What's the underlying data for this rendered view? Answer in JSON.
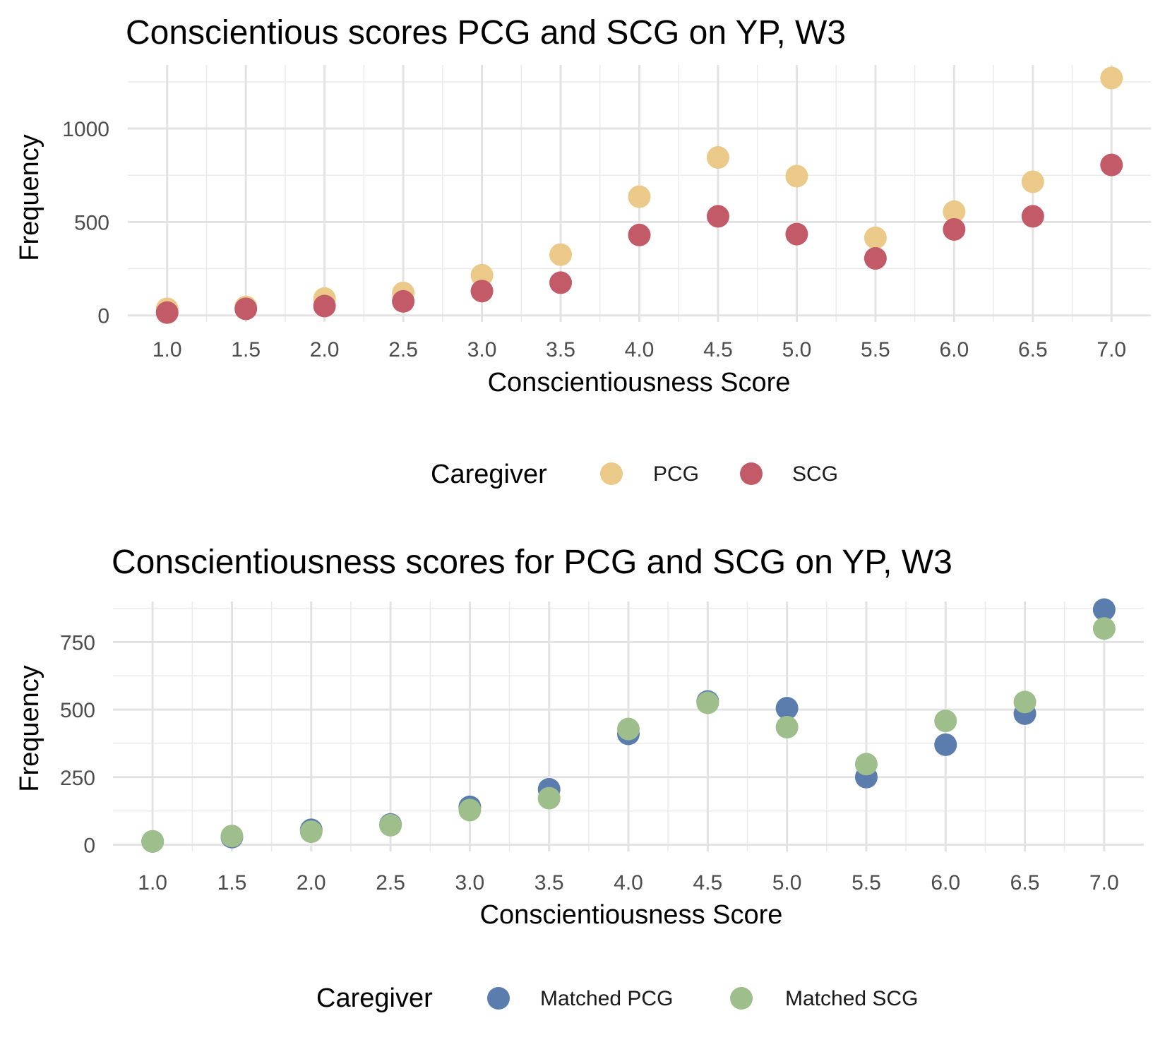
{
  "chart_data": [
    {
      "type": "scatter",
      "title": "Conscientious scores PCG and SCG on YP, W3",
      "xlabel": "Conscientiousness Score",
      "ylabel": "Frequency",
      "x": [
        1.0,
        1.5,
        2.0,
        2.5,
        3.0,
        3.5,
        4.0,
        4.5,
        5.0,
        5.5,
        6.0,
        6.5,
        7.0
      ],
      "x_tick_labels": [
        "1.0",
        "1.5",
        "2.0",
        "2.5",
        "3.0",
        "3.5",
        "4.0",
        "4.5",
        "5.0",
        "5.5",
        "6.0",
        "6.5",
        "7.0"
      ],
      "y_ticks": [
        0,
        500,
        1000
      ],
      "y_tick_labels": [
        "0",
        "500",
        "1000"
      ],
      "xlim": [
        0.75,
        7.25
      ],
      "ylim": [
        -35,
        1340
      ],
      "grid": true,
      "legend": {
        "title": "Caregiver",
        "position": "bottom"
      },
      "series": [
        {
          "name": "PCG",
          "color": "#EBC988",
          "values": [
            35,
            45,
            90,
            120,
            215,
            325,
            635,
            845,
            745,
            415,
            555,
            715,
            1270
          ]
        },
        {
          "name": "SCG",
          "color": "#C25B67",
          "values": [
            15,
            35,
            50,
            75,
            130,
            175,
            430,
            530,
            435,
            305,
            460,
            530,
            805
          ]
        }
      ]
    },
    {
      "type": "scatter",
      "title": "Conscientiousness scores for PCG and SCG on YP, W3",
      "xlabel": "Conscientiousness Score",
      "ylabel": "Frequency",
      "x": [
        1.0,
        1.5,
        2.0,
        2.5,
        3.0,
        3.5,
        4.0,
        4.5,
        5.0,
        5.5,
        6.0,
        6.5,
        7.0
      ],
      "x_tick_labels": [
        "1.0",
        "1.5",
        "2.0",
        "2.5",
        "3.0",
        "3.5",
        "4.0",
        "4.5",
        "5.0",
        "5.5",
        "6.0",
        "6.5",
        "7.0"
      ],
      "y_ticks": [
        0,
        250,
        500,
        750
      ],
      "y_tick_labels": [
        "0",
        "250",
        "500",
        "750"
      ],
      "xlim": [
        0.75,
        7.25
      ],
      "ylim": [
        -25,
        900
      ],
      "grid": true,
      "legend": {
        "title": "Caregiver",
        "position": "bottom"
      },
      "series": [
        {
          "name": "Matched PCG",
          "color": "#5A7DAE",
          "values": [
            12,
            28,
            55,
            75,
            140,
            205,
            410,
            530,
            505,
            250,
            370,
            485,
            870
          ]
        },
        {
          "name": "Matched SCG",
          "color": "#9EBF8C",
          "values": [
            12,
            32,
            48,
            72,
            128,
            172,
            428,
            525,
            435,
            298,
            458,
            528,
            800
          ]
        }
      ]
    }
  ]
}
